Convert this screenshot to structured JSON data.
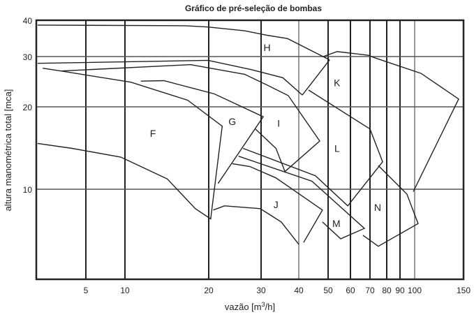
{
  "chart_data": {
    "type": "line",
    "title": "Gráfico de pré-seleção de bombas",
    "xlabel": "vazão [m³/h]",
    "xlabel_base": "vazão [m",
    "xlabel_sup": "3",
    "xlabel_end": "/h]",
    "ylabel": "altura manométrica total [mca]",
    "x_scale": "log",
    "y_scale": "log",
    "xlim": [
      2.05,
      150
    ],
    "ylim": [
      4.7,
      40
    ],
    "grid": true,
    "x_ticks": [
      5,
      10,
      20,
      30,
      40,
      50,
      60,
      70,
      80,
      90,
      100,
      150
    ],
    "x_gray_ticks": [
      40,
      100
    ],
    "y_ticks": [
      10,
      20,
      30,
      40
    ],
    "line_color": "#222222",
    "outlines": [
      {
        "id": "h-top",
        "points": [
          [
            2.1,
            38.5
          ],
          [
            16.6,
            38.3
          ],
          [
            19.9,
            37.9
          ],
          [
            26.4,
            36.8
          ],
          [
            31,
            35.6
          ],
          [
            36.7,
            34.6
          ],
          [
            50.6,
            29.2
          ]
        ]
      },
      {
        "id": "k-left",
        "points": [
          [
            50.6,
            29.2
          ],
          [
            41.1,
            22.0
          ]
        ]
      },
      {
        "id": "line-a",
        "points": [
          [
            2.1,
            28.4
          ],
          [
            19.9,
            29.1
          ],
          [
            27.8,
            27.0
          ],
          [
            35.4,
            25.3
          ],
          [
            41.1,
            22.0
          ]
        ]
      },
      {
        "id": "k-top",
        "points": [
          [
            48.2,
            30.0
          ],
          [
            53.8,
            31.2
          ],
          [
            69.2,
            30.3
          ],
          [
            72.0,
            29.8
          ],
          [
            105.4,
            26.2
          ],
          [
            144,
            21.3
          ],
          [
            99.0,
            9.8
          ]
        ]
      },
      {
        "id": "line-b",
        "points": [
          [
            2.3,
            27.3
          ],
          [
            3.2,
            26.7
          ],
          [
            17.2,
            28.1
          ],
          [
            26.4,
            26.0
          ],
          [
            31.0,
            24.0
          ],
          [
            36.9,
            21.9
          ],
          [
            46.9,
            15.0
          ],
          [
            36.0,
            11.6
          ]
        ]
      },
      {
        "id": "i-inner",
        "points": [
          [
            28.7,
            16.6
          ],
          [
            33.6,
            14.1
          ],
          [
            36.0,
            11.6
          ]
        ]
      },
      {
        "id": "f-boundary",
        "points": [
          [
            3.2,
            26.7
          ],
          [
            10.5,
            24.4
          ],
          [
            16.8,
            21.1
          ],
          [
            22.2,
            17.0
          ],
          [
            20.3,
            7.8
          ],
          [
            17.9,
            8.5
          ],
          [
            14.2,
            10.9
          ],
          [
            9.3,
            13.1
          ],
          [
            3.9,
            14.1
          ],
          [
            2.1,
            14.7
          ]
        ]
      },
      {
        "id": "g-top",
        "points": [
          [
            11.4,
            24.6
          ],
          [
            13.8,
            24.7
          ],
          [
            20.9,
            22.2
          ],
          [
            30.5,
            18.4
          ],
          [
            21.5,
            10.5
          ]
        ]
      },
      {
        "id": "j-bottom",
        "points": [
          [
            20.7,
            8.4
          ],
          [
            22.6,
            8.7
          ],
          [
            29.8,
            8.5
          ],
          [
            35.0,
            7.6
          ],
          [
            40,
            6.3
          ]
        ]
      },
      {
        "id": "j-top",
        "points": [
          [
            24.0,
            12.4
          ],
          [
            27.5,
            12.1
          ],
          [
            33.6,
            11.0
          ],
          [
            47.9,
            8.4
          ],
          [
            41.5,
            6.4
          ]
        ]
      },
      {
        "id": "m-boundary",
        "points": [
          [
            25.2,
            13.2
          ],
          [
            44.2,
            10.7
          ],
          [
            67.0,
            7.2
          ],
          [
            55.4,
            6.6
          ],
          [
            47.9,
            7.6
          ]
        ]
      },
      {
        "id": "l-bottom",
        "points": [
          [
            26.1,
            14.1
          ],
          [
            45.4,
            11.2
          ],
          [
            58.7,
            8.7
          ],
          [
            77.4,
            12.6
          ],
          [
            70,
            16.6
          ],
          [
            43.1,
            22.9
          ]
        ]
      },
      {
        "id": "n-boundary",
        "points": [
          [
            74.8,
            12.2
          ],
          [
            94.6,
            9.6
          ],
          [
            102.9,
            7.5
          ],
          [
            74.8,
            6.2
          ],
          [
            66.2,
            6.8
          ]
        ]
      }
    ],
    "region_labels": [
      {
        "text": "H",
        "x": 31.4,
        "y": 32.2
      },
      {
        "text": "K",
        "x": 53.8,
        "y": 24.3
      },
      {
        "text": "G",
        "x": 24.0,
        "y": 17.7
      },
      {
        "text": "I",
        "x": 34.3,
        "y": 17.4
      },
      {
        "text": "F",
        "x": 12.6,
        "y": 16.0
      },
      {
        "text": "L",
        "x": 53.8,
        "y": 14.1
      },
      {
        "text": "J",
        "x": 33.6,
        "y": 8.8
      },
      {
        "text": "N",
        "x": 74.4,
        "y": 8.6
      },
      {
        "text": "M",
        "x": 53.5,
        "y": 7.5
      }
    ]
  }
}
